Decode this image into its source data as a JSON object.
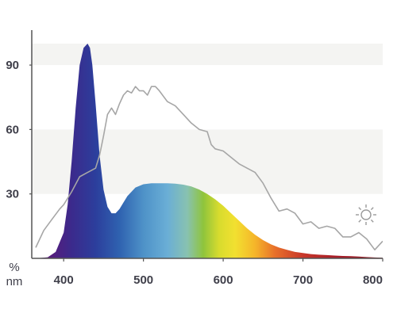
{
  "chart_data": {
    "type": "area",
    "y_unit": "%",
    "x_unit": "nm",
    "xlim": [
      360,
      800
    ],
    "ylim": [
      0,
      100
    ],
    "x_ticks": [
      400,
      500,
      600,
      700,
      800
    ],
    "y_ticks": [
      30,
      60,
      90
    ],
    "x_tick_labels": [
      "400",
      "500",
      "600",
      "700",
      "800"
    ],
    "y_tick_labels": [
      "30",
      "60",
      "90"
    ],
    "grid": "horizontal bands",
    "legend": "sun-icon (daylight reference)",
    "series": [
      {
        "fill": "visible-spectrum gradient",
        "x": [
          365,
          380,
          390,
          400,
          405,
          410,
          415,
          420,
          425,
          430,
          433,
          436,
          440,
          445,
          450,
          455,
          460,
          465,
          470,
          475,
          480,
          490,
          500,
          510,
          520,
          530,
          540,
          550,
          560,
          570,
          580,
          590,
          600,
          610,
          620,
          630,
          640,
          650,
          660,
          670,
          680,
          690,
          700,
          710,
          720,
          730,
          740,
          750,
          760,
          770,
          780,
          790,
          800
        ],
        "y": [
          0,
          0.5,
          3,
          12,
          25,
          45,
          70,
          90,
          98,
          100,
          98,
          90,
          72,
          48,
          32,
          24,
          21,
          21,
          23,
          26,
          29,
          33,
          34.5,
          35,
          35,
          35,
          34.8,
          34.3,
          33.5,
          32,
          30,
          27.5,
          24.5,
          21,
          17.5,
          14,
          11,
          8.5,
          6.5,
          5,
          4,
          3,
          2.5,
          2,
          1.7,
          1.5,
          1.3,
          1.1,
          1,
          0.8,
          0.6,
          0.4,
          0.3
        ]
      },
      {
        "style": "gray line",
        "x": [
          365,
          375,
          385,
          395,
          400,
          410,
          420,
          430,
          440,
          445,
          450,
          455,
          460,
          465,
          470,
          475,
          480,
          485,
          490,
          495,
          500,
          505,
          510,
          515,
          520,
          530,
          540,
          550,
          560,
          570,
          580,
          585,
          590,
          600,
          610,
          620,
          630,
          640,
          650,
          660,
          670,
          680,
          690,
          700,
          710,
          720,
          730,
          740,
          750,
          760,
          770,
          780,
          790,
          800
        ],
        "y": [
          5,
          13,
          18,
          23,
          25,
          31,
          38,
          40,
          42,
          48,
          57,
          67,
          70,
          67,
          72,
          76,
          78,
          77,
          80,
          78,
          78,
          76,
          80,
          80,
          78,
          73,
          71,
          67,
          63,
          60,
          59,
          53,
          51,
          50,
          47,
          44,
          42,
          40,
          35,
          28,
          22,
          23,
          21,
          16,
          17,
          14,
          15,
          14,
          10,
          10,
          12,
          9,
          4,
          8
        ]
      }
    ]
  }
}
